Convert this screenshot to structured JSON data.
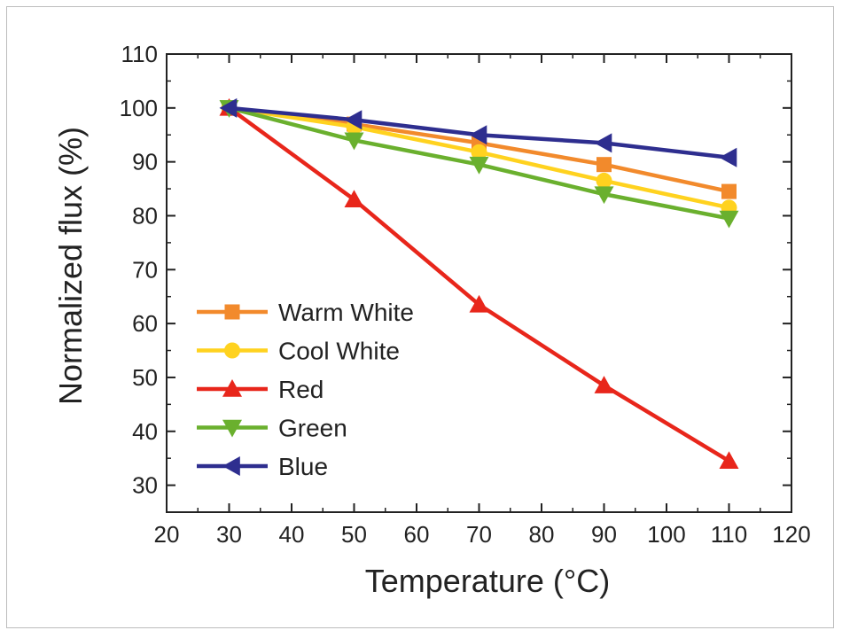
{
  "chart_data": {
    "type": "line",
    "xlabel": "Temperature (°C)",
    "ylabel": "Normalized flux (%)",
    "xlim": [
      20,
      120
    ],
    "ylim": [
      25,
      110
    ],
    "xticks": [
      20,
      30,
      40,
      50,
      60,
      70,
      80,
      90,
      100,
      110,
      120
    ],
    "yticks": [
      30,
      40,
      50,
      60,
      70,
      80,
      90,
      100,
      110
    ],
    "x": [
      30,
      50,
      70,
      90,
      110
    ],
    "grid": false,
    "legend": "bottom-left",
    "series": [
      {
        "name": "Warm White",
        "color": "#f28a2c",
        "marker": "square",
        "values": [
          100,
          97.0,
          93.5,
          89.5,
          84.5
        ]
      },
      {
        "name": "Cool White",
        "color": "#ffd21f",
        "marker": "circle",
        "values": [
          100,
          96.5,
          91.8,
          86.5,
          81.5
        ]
      },
      {
        "name": "Red",
        "color": "#e8261b",
        "marker": "triangle-up",
        "values": [
          100,
          83.0,
          63.5,
          48.5,
          34.5
        ]
      },
      {
        "name": "Green",
        "color": "#6ab02e",
        "marker": "triangle-down",
        "values": [
          100,
          94.0,
          89.5,
          84.0,
          79.5
        ]
      },
      {
        "name": "Blue",
        "color": "#2e2e8f",
        "marker": "triangle-left",
        "values": [
          100,
          97.8,
          95.0,
          93.5,
          90.8
        ]
      }
    ]
  }
}
